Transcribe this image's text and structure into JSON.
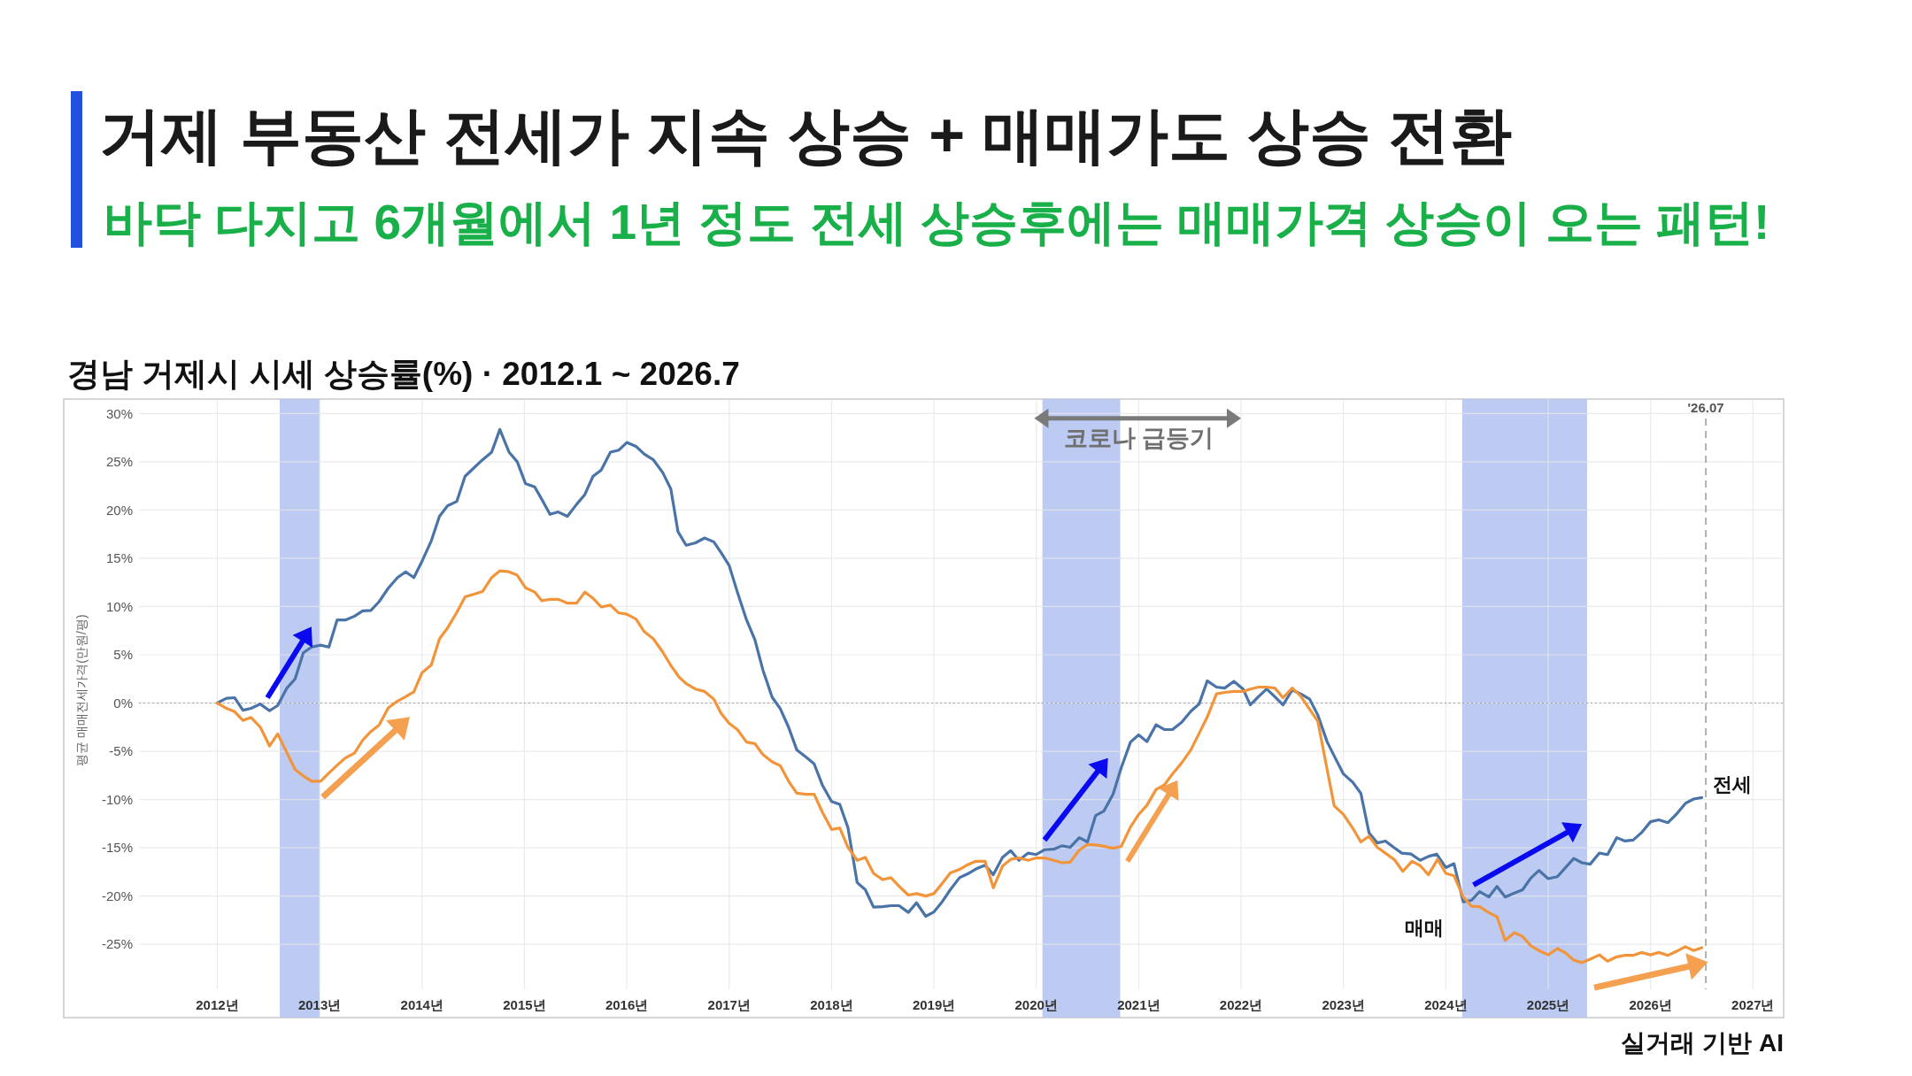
{
  "chart_data": {
    "type": "line",
    "title": "거제 부동산 전세가 지속 상승 + 매매가도 상승 전환",
    "subtitle": "바닥 다지고 6개월에서 1년 정도 전세 상승후에는 매매가격 상승이 오는 패턴!",
    "ylabel": "평균 매매전세가격(만원/평)",
    "annotations": [
      "경남 거제시 시세 상승률(%) · 2012.1 ~ 2026.7",
      "코로나 급등기",
      "실거래 기반 AI",
      "'26.07"
    ],
    "xlim": [
      2010.5,
      2027.3
    ],
    "ylim": [
      -32.6,
      31.5
    ],
    "xticks": [
      {
        "value": 2012,
        "label": "2012년"
      },
      {
        "value": 2013,
        "label": "2013년"
      },
      {
        "value": 2014,
        "label": "2014년"
      },
      {
        "value": 2015,
        "label": "2015년"
      },
      {
        "value": 2016,
        "label": "2016년"
      },
      {
        "value": 2017,
        "label": "2017년"
      },
      {
        "value": 2018,
        "label": "2018년"
      },
      {
        "value": 2019,
        "label": "2019년"
      },
      {
        "value": 2020,
        "label": "2020년"
      },
      {
        "value": 2021,
        "label": "2021년"
      },
      {
        "value": 2022,
        "label": "2022년"
      },
      {
        "value": 2023,
        "label": "2023년"
      },
      {
        "value": 2024,
        "label": "2024년"
      },
      {
        "value": 2025,
        "label": "2025년"
      },
      {
        "value": 2026,
        "label": "2026년"
      },
      {
        "value": 2027,
        "label": "2027년"
      }
    ],
    "yticks": [
      {
        "value": -25,
        "label": "-25%"
      },
      {
        "value": -20,
        "label": "-20%"
      },
      {
        "value": -15,
        "label": "-15%"
      },
      {
        "value": -10,
        "label": "-10%"
      },
      {
        "value": -5,
        "label": "-5%"
      },
      {
        "value": 0,
        "label": "0%"
      },
      {
        "value": 5,
        "label": "5%"
      },
      {
        "value": 10,
        "label": "10%"
      },
      {
        "value": 15,
        "label": "15%"
      },
      {
        "value": 20,
        "label": "20%"
      },
      {
        "value": 25,
        "label": "25%"
      },
      {
        "value": 30,
        "label": "30%"
      }
    ],
    "grid": true,
    "marker": "none",
    "line_style": "solid",
    "bands": [
      {
        "axis": "x",
        "from": 2012.61,
        "to": 2013.0,
        "color": "#b9c8f2"
      },
      {
        "axis": "x",
        "from": 2020.06,
        "to": 2020.82,
        "color": "#b9c8f2"
      },
      {
        "axis": "x",
        "from": 2024.16,
        "to": 2025.38,
        "color": "#b9c8f2"
      }
    ],
    "ref_lines": [
      {
        "axis": "x",
        "value": 2026.54,
        "line_style": "dashed",
        "color": "#b0b0b0"
      },
      {
        "axis": "y",
        "value": 0,
        "line_style": "dotted",
        "color": "#a0a0a0"
      }
    ],
    "series": [
      {
        "name": "전세",
        "color": "#4a74a8",
        "x": [
          2012.0,
          2012.09,
          2012.17,
          2012.25,
          2012.33,
          2012.42,
          2012.51,
          2012.59,
          2012.68,
          2012.76,
          2012.84,
          2012.92,
          2013.01,
          2013.09,
          2013.17,
          2013.25,
          2013.34,
          2013.42,
          2013.5,
          2013.58,
          2013.67,
          2013.76,
          2013.84,
          2013.92,
          2014.0,
          2014.09,
          2014.17,
          2014.25,
          2014.34,
          2014.42,
          2014.5,
          2014.59,
          2014.68,
          2014.76,
          2014.85,
          2014.93,
          2015.01,
          2015.1,
          2015.17,
          2015.25,
          2015.33,
          2015.42,
          2015.51,
          2015.59,
          2015.67,
          2015.75,
          2015.84,
          2015.92,
          2016.0,
          2016.09,
          2016.17,
          2016.26,
          2016.35,
          2016.43,
          2016.5,
          2016.58,
          2016.67,
          2016.76,
          2016.85,
          2016.92,
          2017.0,
          2017.08,
          2017.17,
          2017.25,
          2017.33,
          2017.42,
          2017.5,
          2017.58,
          2017.66,
          2017.75,
          2017.83,
          2017.91,
          2018.0,
          2018.08,
          2018.16,
          2018.25,
          2018.33,
          2018.41,
          2018.5,
          2018.58,
          2018.66,
          2018.75,
          2018.83,
          2018.92,
          2019.0,
          2019.08,
          2019.16,
          2019.25,
          2019.33,
          2019.41,
          2019.5,
          2019.58,
          2019.67,
          2019.75,
          2019.83,
          2019.92,
          2020.0,
          2020.08,
          2020.17,
          2020.25,
          2020.33,
          2020.42,
          2020.5,
          2020.58,
          2020.66,
          2020.75,
          2020.83,
          2020.92,
          2021.0,
          2021.08,
          2021.17,
          2021.25,
          2021.33,
          2021.42,
          2021.51,
          2021.59,
          2021.67,
          2021.76,
          2021.84,
          2021.93,
          2022.02,
          2022.09,
          2022.17,
          2022.25,
          2022.33,
          2022.41,
          2022.5,
          2022.59,
          2022.67,
          2022.75,
          2022.84,
          2022.92,
          2023.0,
          2023.09,
          2023.17,
          2023.25,
          2023.33,
          2023.41,
          2023.49,
          2023.57,
          2023.66,
          2023.75,
          2023.83,
          2023.91,
          2024.0,
          2024.08,
          2024.17,
          2024.25,
          2024.33,
          2024.42,
          2024.5,
          2024.58,
          2024.67,
          2024.75,
          2024.83,
          2024.91,
          2025.0,
          2025.09,
          2025.17,
          2025.25,
          2025.33,
          2025.41,
          2025.5,
          2025.58,
          2025.67,
          2025.75,
          2025.83,
          2025.91,
          2026.0,
          2026.08,
          2026.17,
          2026.25,
          2026.34,
          2026.42,
          2026.5
        ],
        "values": [
          0,
          0.5,
          0.55,
          -0.75,
          -0.55,
          -0.1,
          -0.8,
          -0.25,
          1.55,
          2.5,
          5.2,
          5.8,
          6.0,
          5.8,
          8.6,
          8.6,
          9.0,
          9.55,
          9.6,
          10.5,
          11.9,
          13.0,
          13.6,
          13.0,
          14.7,
          16.8,
          19.35,
          20.45,
          20.9,
          23.5,
          24.3,
          25.2,
          26.0,
          28.35,
          26.0,
          25.0,
          22.75,
          22.4,
          21.1,
          19.55,
          19.8,
          19.35,
          20.6,
          21.6,
          23.5,
          24.15,
          26.0,
          26.2,
          27.0,
          26.6,
          25.8,
          25.2,
          23.9,
          22.2,
          17.75,
          16.35,
          16.6,
          17.1,
          16.7,
          15.6,
          14.25,
          11.5,
          8.6,
          6.6,
          3.4,
          0.6,
          -0.6,
          -2.5,
          -4.85,
          -5.6,
          -6.3,
          -8.5,
          -10.2,
          -10.5,
          -12.9,
          -18.6,
          -19.35,
          -21.15,
          -21.1,
          -21.0,
          -21.0,
          -21.7,
          -20.7,
          -22.1,
          -21.65,
          -20.6,
          -19.35,
          -18.1,
          -17.7,
          -17.2,
          -16.8,
          -17.8,
          -16.0,
          -15.3,
          -16.3,
          -15.55,
          -15.7,
          -15.2,
          -15.15,
          -14.8,
          -14.95,
          -13.95,
          -14.4,
          -11.65,
          -11.2,
          -9.45,
          -6.7,
          -4.05,
          -3.3,
          -4.0,
          -2.25,
          -2.75,
          -2.75,
          -2.0,
          -0.85,
          -0.1,
          2.3,
          1.65,
          1.55,
          2.25,
          1.45,
          -0.2,
          0.65,
          1.45,
          0.65,
          -0.2,
          1.35,
          0.9,
          0.4,
          -1.25,
          -4.0,
          -5.7,
          -7.35,
          -8.2,
          -9.35,
          -13.45,
          -14.5,
          -14.3,
          -14.95,
          -15.55,
          -15.65,
          -16.3,
          -15.9,
          -15.65,
          -17.05,
          -16.65,
          -20.6,
          -20.45,
          -19.55,
          -20.1,
          -19.0,
          -20.1,
          -19.7,
          -19.35,
          -18.15,
          -17.35,
          -18.2,
          -18.0,
          -17.05,
          -16.1,
          -16.55,
          -16.7,
          -15.55,
          -15.7,
          -13.95,
          -14.3,
          -14.2,
          -13.45,
          -12.3,
          -12.1,
          -12.4,
          -11.55,
          -10.4,
          -9.95,
          -9.8
        ]
      },
      {
        "name": "매매",
        "color": "#f2953a",
        "x": [
          2012.0,
          2012.08,
          2012.17,
          2012.25,
          2012.33,
          2012.42,
          2012.51,
          2012.59,
          2012.68,
          2012.76,
          2012.84,
          2012.92,
          2013.01,
          2013.09,
          2013.17,
          2013.25,
          2013.34,
          2013.42,
          2013.5,
          2013.58,
          2013.67,
          2013.76,
          2013.84,
          2013.92,
          2014.0,
          2014.09,
          2014.17,
          2014.25,
          2014.34,
          2014.42,
          2014.5,
          2014.59,
          2014.68,
          2014.76,
          2014.85,
          2014.93,
          2015.01,
          2015.1,
          2015.17,
          2015.25,
          2015.33,
          2015.42,
          2015.51,
          2015.59,
          2015.67,
          2015.75,
          2015.84,
          2015.92,
          2016.0,
          2016.09,
          2016.17,
          2016.26,
          2016.35,
          2016.43,
          2016.51,
          2016.58,
          2016.67,
          2016.76,
          2016.85,
          2016.92,
          2017.0,
          2017.08,
          2017.17,
          2017.25,
          2017.33,
          2017.42,
          2017.5,
          2017.58,
          2017.66,
          2017.75,
          2017.83,
          2017.91,
          2018.0,
          2018.08,
          2018.16,
          2018.25,
          2018.33,
          2018.41,
          2018.5,
          2018.58,
          2018.66,
          2018.75,
          2018.83,
          2018.92,
          2019.0,
          2019.08,
          2019.16,
          2019.25,
          2019.33,
          2019.41,
          2019.5,
          2019.58,
          2019.67,
          2019.75,
          2019.83,
          2019.92,
          2020.0,
          2020.08,
          2020.17,
          2020.25,
          2020.33,
          2020.42,
          2020.5,
          2020.58,
          2020.66,
          2020.75,
          2020.83,
          2020.92,
          2021.0,
          2021.08,
          2021.17,
          2021.25,
          2021.33,
          2021.42,
          2021.51,
          2021.59,
          2021.67,
          2021.76,
          2021.84,
          2021.93,
          2022.02,
          2022.09,
          2022.17,
          2022.25,
          2022.33,
          2022.41,
          2022.5,
          2022.58,
          2022.67,
          2022.75,
          2022.83,
          2022.91,
          2023.0,
          2023.09,
          2023.17,
          2023.25,
          2023.33,
          2023.41,
          2023.5,
          2023.58,
          2023.67,
          2023.75,
          2023.83,
          2023.92,
          2024.0,
          2024.08,
          2024.17,
          2024.25,
          2024.33,
          2024.41,
          2024.5,
          2024.58,
          2024.67,
          2024.75,
          2024.83,
          2024.91,
          2025.0,
          2025.09,
          2025.17,
          2025.25,
          2025.33,
          2025.42,
          2025.5,
          2025.58,
          2025.67,
          2025.75,
          2025.83,
          2025.91,
          2026.0,
          2026.08,
          2026.17,
          2026.25,
          2026.34,
          2026.42,
          2026.5
        ],
        "values": [
          0,
          -0.5,
          -0.9,
          -1.8,
          -1.5,
          -2.5,
          -4.45,
          -3.2,
          -5.15,
          -6.9,
          -7.55,
          -8.1,
          -8.1,
          -7.25,
          -6.45,
          -5.7,
          -5.2,
          -3.85,
          -2.95,
          -2.3,
          -0.5,
          0.2,
          0.65,
          1.15,
          3.15,
          3.95,
          6.65,
          7.8,
          9.4,
          11.0,
          11.25,
          11.55,
          13.0,
          13.7,
          13.6,
          13.25,
          11.95,
          11.5,
          10.6,
          10.75,
          10.75,
          10.35,
          10.35,
          11.5,
          10.85,
          9.95,
          10.15,
          9.35,
          9.2,
          8.7,
          7.4,
          6.65,
          5.3,
          3.9,
          2.7,
          2.0,
          1.45,
          1.2,
          0.4,
          -1.05,
          -2.1,
          -2.75,
          -4.05,
          -4.2,
          -5.35,
          -6.1,
          -6.5,
          -8.1,
          -9.35,
          -9.45,
          -9.45,
          -11.3,
          -13.1,
          -12.95,
          -14.95,
          -16.3,
          -16.0,
          -17.65,
          -18.3,
          -18.1,
          -19.0,
          -19.9,
          -19.75,
          -20.0,
          -19.75,
          -18.7,
          -17.6,
          -17.25,
          -16.75,
          -16.4,
          -16.4,
          -19.15,
          -16.9,
          -16.2,
          -16.05,
          -16.3,
          -16.05,
          -16.05,
          -16.3,
          -16.55,
          -16.5,
          -15.25,
          -14.65,
          -14.7,
          -14.85,
          -15.05,
          -14.85,
          -12.85,
          -11.55,
          -10.6,
          -8.95,
          -8.5,
          -7.35,
          -6.2,
          -4.85,
          -3.15,
          -1.45,
          0.95,
          1.1,
          1.2,
          1.2,
          1.45,
          1.65,
          1.65,
          1.55,
          0.55,
          1.55,
          0.75,
          -0.65,
          -1.9,
          -6.3,
          -10.65,
          -11.55,
          -12.95,
          -14.4,
          -13.8,
          -14.95,
          -15.55,
          -16.25,
          -17.45,
          -16.4,
          -16.85,
          -17.8,
          -16.2,
          -17.65,
          -17.9,
          -20.1,
          -21.05,
          -21.1,
          -21.65,
          -22.15,
          -24.6,
          -23.8,
          -24.2,
          -25.15,
          -25.65,
          -26.1,
          -25.45,
          -25.9,
          -26.65,
          -26.9,
          -26.5,
          -26.1,
          -26.75,
          -26.3,
          -26.15,
          -26.15,
          -25.85,
          -26.1,
          -25.85,
          -26.15,
          -25.75,
          -25.25,
          -25.65,
          -25.35
        ]
      }
    ]
  }
}
